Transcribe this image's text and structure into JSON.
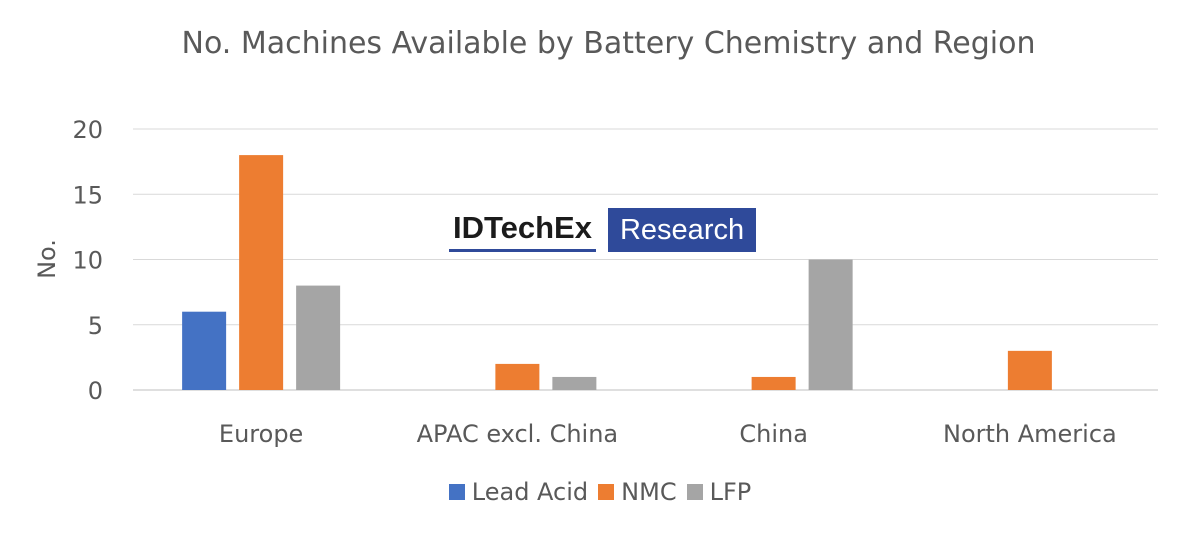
{
  "chart_data": {
    "type": "bar",
    "title": "No. Machines Available by Battery Chemistry and Region",
    "xlabel": "",
    "ylabel": "No.",
    "ylim": [
      0,
      20
    ],
    "yticks": [
      0,
      5,
      10,
      15,
      20
    ],
    "grid": true,
    "legend_position": "bottom",
    "categories": [
      "Europe",
      "APAC excl. China",
      "China",
      "North America"
    ],
    "series": [
      {
        "name": "Lead Acid",
        "color": "#4472c4",
        "values": [
          6,
          0,
          0,
          0
        ]
      },
      {
        "name": "NMC",
        "color": "#ed7d31",
        "values": [
          18,
          2,
          1,
          3
        ]
      },
      {
        "name": "LFP",
        "color": "#a5a5a5",
        "values": [
          8,
          1,
          10,
          0
        ]
      }
    ]
  },
  "watermark": {
    "brand": "IDTechEx",
    "tag": "Research"
  }
}
